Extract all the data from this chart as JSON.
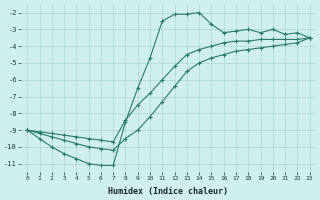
{
  "xlabel": "Humidex (Indice chaleur)",
  "bg_color": "#cff0ee",
  "line_color": "#2a7a6a",
  "grid_color": "#aad8d0",
  "xlim": [
    -0.5,
    23.5
  ],
  "ylim": [
    -11.5,
    -1.5
  ],
  "yticks": [
    -2,
    -3,
    -4,
    -5,
    -6,
    -7,
    -8,
    -9,
    -10,
    -11
  ],
  "xticks": [
    0,
    1,
    2,
    3,
    4,
    5,
    6,
    7,
    8,
    9,
    10,
    11,
    12,
    13,
    14,
    15,
    16,
    17,
    18,
    19,
    20,
    21,
    22,
    23
  ],
  "main_x": [
    0,
    1,
    2,
    3,
    4,
    5,
    6,
    7,
    8,
    9,
    10,
    11,
    12,
    13,
    14,
    15,
    16,
    17,
    18,
    19,
    20,
    21,
    22,
    23
  ],
  "main_y": [
    -9.0,
    -9.5,
    -10.0,
    -10.4,
    -10.7,
    -11.0,
    -11.1,
    -11.1,
    -8.5,
    -6.5,
    -4.7,
    -2.5,
    -2.1,
    -2.1,
    -2.0,
    -2.7,
    -3.2,
    -3.1,
    -3.0,
    -3.2,
    -3.0,
    -3.3,
    -3.2,
    -3.5
  ],
  "diag1_x": [
    0,
    1,
    2,
    3,
    4,
    5,
    6,
    7,
    8,
    9,
    10,
    11,
    12,
    13,
    14,
    15,
    16,
    17,
    18,
    19,
    20,
    21,
    22,
    23
  ],
  "diag1_y": [
    -9.0,
    -9.1,
    -9.2,
    -9.3,
    -9.4,
    -9.5,
    -9.6,
    -9.7,
    -8.4,
    -7.5,
    -6.8,
    -6.0,
    -5.2,
    -4.5,
    -4.2,
    -4.0,
    -3.8,
    -3.7,
    -3.7,
    -3.6,
    -3.6,
    -3.6,
    -3.6,
    -3.5
  ],
  "diag2_x": [
    0,
    1,
    2,
    3,
    4,
    5,
    6,
    7,
    8,
    9,
    10,
    11,
    12,
    13,
    14,
    15,
    16,
    17,
    18,
    19,
    20,
    21,
    22,
    23
  ],
  "diag2_y": [
    -9.0,
    -9.2,
    -9.4,
    -9.6,
    -9.8,
    -10.0,
    -10.1,
    -10.2,
    -9.5,
    -9.0,
    -8.2,
    -7.3,
    -6.4,
    -5.5,
    -5.0,
    -4.7,
    -4.5,
    -4.3,
    -4.2,
    -4.1,
    -4.0,
    -3.9,
    -3.8,
    -3.5
  ]
}
